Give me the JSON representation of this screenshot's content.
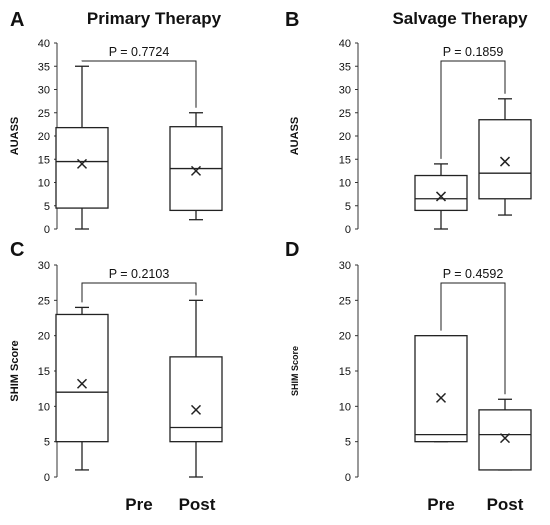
{
  "chart_data": [
    {
      "type": "box",
      "panel": "A",
      "title": "Primary Therapy",
      "ylabel": "AUASS",
      "ylim": [
        0,
        40
      ],
      "yticks": [
        0,
        5,
        10,
        15,
        20,
        25,
        30,
        35,
        40
      ],
      "categories": [
        "Pre",
        "Post"
      ],
      "p_value": "P = 0.7724",
      "boxes": [
        {
          "min": 0,
          "q1": 4.5,
          "median": 14.5,
          "q3": 21.8,
          "max": 35,
          "mean": 14
        },
        {
          "min": 2,
          "q1": 4,
          "median": 13,
          "q3": 22,
          "max": 25,
          "mean": 12.5
        }
      ]
    },
    {
      "type": "box",
      "panel": "B",
      "title": "Salvage Therapy",
      "ylabel": "AUASS",
      "ylim": [
        0,
        40
      ],
      "yticks": [
        0,
        5,
        10,
        15,
        20,
        25,
        30,
        35,
        40
      ],
      "categories": [
        "Pre",
        "Post"
      ],
      "p_value": "P = 0.1859",
      "boxes": [
        {
          "min": 0,
          "q1": 4,
          "median": 6.5,
          "q3": 11.5,
          "max": 14,
          "mean": 7
        },
        {
          "min": 3,
          "q1": 6.5,
          "median": 12,
          "q3": 23.5,
          "max": 28,
          "mean": 14.5
        }
      ]
    },
    {
      "type": "box",
      "panel": "C",
      "title": "",
      "ylabel": "SHIM Score",
      "ylim": [
        0,
        30
      ],
      "yticks": [
        0,
        5,
        10,
        15,
        20,
        25,
        30
      ],
      "categories": [
        "Pre",
        "Post"
      ],
      "p_value": "P = 0.2103",
      "boxes": [
        {
          "min": 1,
          "q1": 5,
          "median": 12,
          "q3": 23,
          "max": 24,
          "mean": 13.2
        },
        {
          "min": 0,
          "q1": 5,
          "median": 7,
          "q3": 17,
          "max": 25,
          "mean": 9.5
        }
      ]
    },
    {
      "type": "box",
      "panel": "D",
      "title": "",
      "ylabel": "SHIM Score",
      "ylim": [
        0,
        30
      ],
      "yticks": [
        0,
        5,
        10,
        15,
        20,
        25,
        30
      ],
      "categories": [
        "Pre",
        "Post"
      ],
      "p_value": "P = 0.4592",
      "boxes": [
        {
          "min": 5,
          "q1": 5,
          "median": 6,
          "q3": 20,
          "max": 20,
          "mean": 11.2
        },
        {
          "min": 1,
          "q1": 1,
          "median": 6,
          "q3": 9.5,
          "max": 11,
          "mean": 5.5
        }
      ]
    }
  ]
}
